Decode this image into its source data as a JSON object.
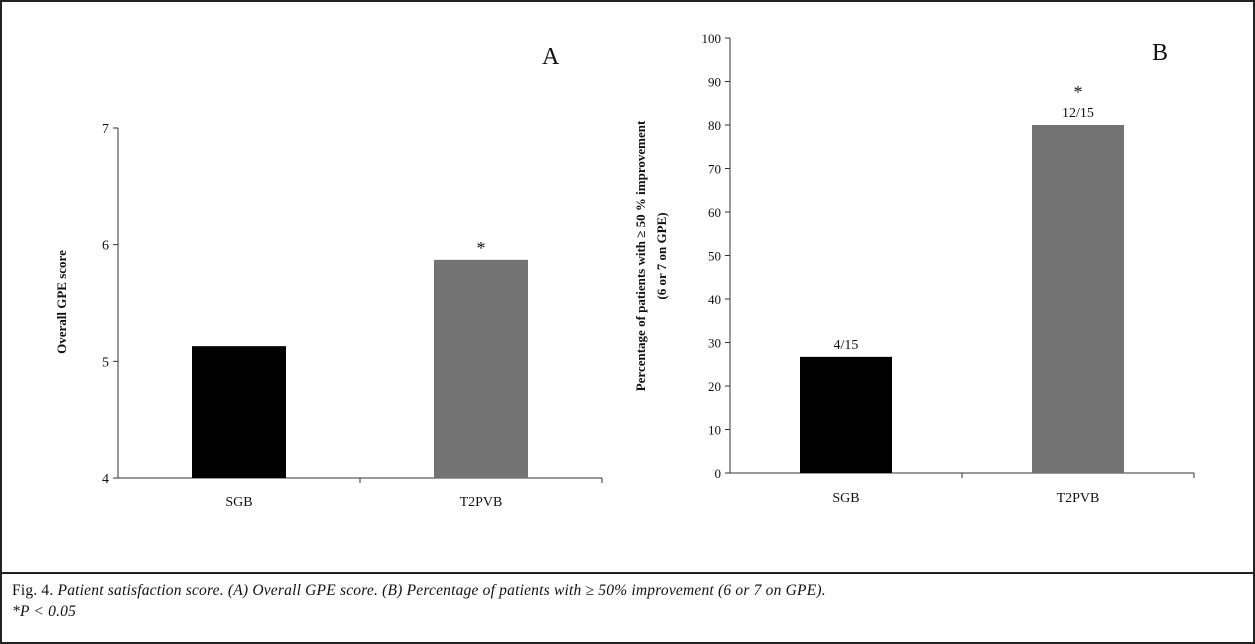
{
  "caption": {
    "figure_label": "Fig. 4.",
    "text_line1": "Patient satisfaction score. (A) Overall GPE score. (B) Percentage of patients with ≥ 50% improvement (6 or 7 on GPE).",
    "text_line2": "*P < 0.05"
  },
  "chart_data": [
    {
      "type": "bar",
      "panel_label": "A",
      "categories": [
        "SGB",
        "T2PVB"
      ],
      "values": [
        5.13,
        5.87
      ],
      "colors": [
        "#000000",
        "#737373"
      ],
      "ylabel": "Overall GPE score",
      "ylim": [
        4,
        7
      ],
      "yticks": [
        4,
        5,
        6,
        7
      ],
      "bar_labels": [
        "",
        "*"
      ],
      "grid": false
    },
    {
      "type": "bar",
      "panel_label": "B",
      "categories": [
        "SGB",
        "T2PVB"
      ],
      "values": [
        26.7,
        80
      ],
      "colors": [
        "#000000",
        "#737373"
      ],
      "ylabel": "Percentage of patients with ≥ 50 % improvement",
      "ylabel_line2": "(6 or 7 on GPE)",
      "ylim": [
        0,
        100
      ],
      "yticks": [
        0,
        10,
        20,
        30,
        40,
        50,
        60,
        70,
        80,
        90,
        100
      ],
      "bar_labels": [
        "4/15",
        "12/15"
      ],
      "significance": [
        "",
        "*"
      ],
      "grid": false
    }
  ]
}
